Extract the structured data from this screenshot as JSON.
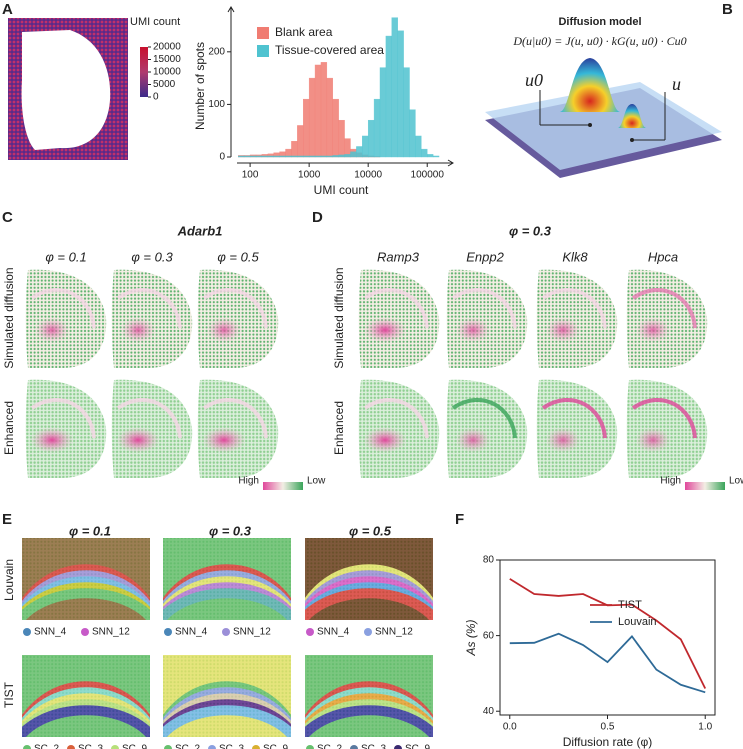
{
  "panel_labels": [
    "A",
    "B",
    "C",
    "D",
    "E",
    "F"
  ],
  "colorbar": {
    "title": "UMI count",
    "ticks": [
      20000,
      15000,
      10000,
      5000,
      0
    ],
    "lim": [
      0,
      20000
    ]
  },
  "diffusion": {
    "title": "Diffusion model",
    "formula": "D(u|u0) = J(u, u0) · kG(u, u0) · Cu0",
    "u0": "u0",
    "u": "u"
  },
  "panel_c": {
    "gene": "Adarb1",
    "phis": [
      "φ = 0.1",
      "φ = 0.3",
      "φ = 0.5"
    ],
    "rows": [
      "Simulated diffusion",
      "Enhanced"
    ],
    "legend": [
      "High",
      "Low"
    ]
  },
  "panel_d": {
    "phi": "φ = 0.3",
    "genes": [
      "Ramp3",
      "Enpp2",
      "Klk8",
      "Hpca"
    ],
    "rows": [
      "Simulated diffusion",
      "Enhanced"
    ],
    "legend": [
      "High",
      "Low"
    ]
  },
  "panel_e": {
    "phis": [
      "φ = 0.1",
      "φ = 0.3",
      "φ = 0.5"
    ],
    "rows": [
      "Louvain",
      "TIST"
    ],
    "legends": [
      [
        [
          "SNN_4",
          "SNN_12"
        ],
        [
          "SNN_4",
          "SNN_12"
        ],
        [
          "SNN_4",
          "SNN_12"
        ]
      ],
      [
        [
          "SC_2",
          "SC_3",
          "SC_9"
        ],
        [
          "SC_2",
          "SC_3",
          "SC_9"
        ],
        [
          "SC_2",
          "SC_3",
          "SC_9"
        ]
      ]
    ]
  },
  "chart_data": [
    {
      "type": "histogram",
      "xlabel": "UMI count",
      "ylabel": "Number of spots",
      "log_x": true,
      "bins": [
        63,
        79,
        100,
        126,
        158,
        200,
        251,
        316,
        398,
        501,
        631,
        794,
        1000,
        1259,
        1585,
        1995,
        2512,
        3162,
        3981,
        5012,
        6310,
        7943,
        10000,
        12589,
        15849,
        19953,
        25119,
        31623,
        39811,
        50119,
        63096,
        79433,
        100000,
        125893,
        158489,
        199526
      ],
      "series": [
        {
          "name": "Blank area",
          "color": "#f07c72",
          "values": [
            3,
            3,
            4,
            4,
            5,
            6,
            8,
            10,
            15,
            30,
            60,
            110,
            150,
            175,
            180,
            150,
            110,
            70,
            35,
            15,
            8,
            4,
            2,
            1,
            0,
            0,
            0,
            0,
            0,
            0,
            0,
            0,
            0,
            0,
            0
          ]
        },
        {
          "name": "Tissue-covered area",
          "color": "#4fc3d0",
          "values": [
            2,
            2,
            2,
            2,
            2,
            2,
            2,
            2,
            2,
            2,
            2,
            2,
            2,
            2,
            2,
            2,
            3,
            4,
            5,
            10,
            20,
            40,
            70,
            110,
            170,
            230,
            265,
            240,
            170,
            90,
            40,
            15,
            5,
            2,
            0
          ]
        }
      ],
      "xlim": [
        60,
        200000
      ],
      "xticks": [
        100,
        1000,
        10000,
        100000
      ],
      "ylim": [
        0,
        270
      ],
      "yticks": [
        0,
        100,
        200
      ],
      "legend": "top-left"
    },
    {
      "type": "line",
      "xlabel": "Diffusion rate (φ)",
      "ylabel": "As (%)",
      "x": [
        0,
        0.125,
        0.25,
        0.375,
        0.5,
        0.625,
        0.75,
        0.875,
        1
      ],
      "series": [
        {
          "name": "TIST",
          "color": "#c0282d",
          "values": [
            75,
            71,
            70.5,
            71,
            68,
            68.2,
            64,
            59,
            46
          ]
        },
        {
          "name": "Louvain",
          "color": "#2e6a97",
          "values": [
            58,
            58.1,
            60.5,
            57.5,
            53,
            59.8,
            51,
            47,
            45
          ]
        }
      ],
      "xlim": [
        -0.05,
        1.05
      ],
      "xticks": [
        {
          "value": 0,
          "label": "0.0"
        },
        {
          "value": 0.5,
          "label": "0.5"
        },
        {
          "value": 1,
          "label": "1.0"
        }
      ],
      "ylim": [
        39,
        80
      ],
      "yticks": [
        40,
        60,
        80
      ],
      "legend": "top-right"
    }
  ]
}
